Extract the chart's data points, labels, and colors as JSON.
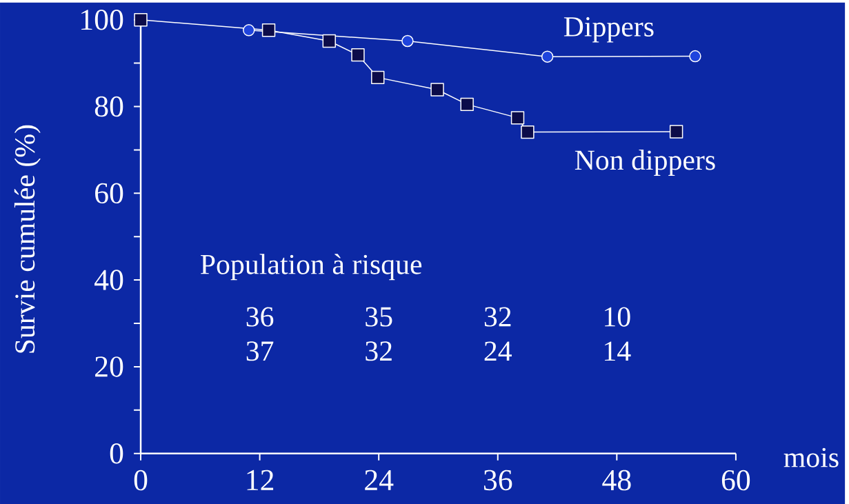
{
  "chart_data": {
    "type": "line",
    "xlabel": "mois",
    "ylabel": "Survie cumulée (%)",
    "xlim": [
      0,
      60
    ],
    "xticks": [
      0,
      12,
      24,
      36,
      48,
      60
    ],
    "ylim": [
      0,
      100
    ],
    "yticks": [
      0,
      {
        "value": 10,
        "label": null
      },
      20,
      {
        "value": 30,
        "label": null
      },
      40,
      {
        "value": 50,
        "label": null
      },
      60,
      {
        "value": 70,
        "label": null
      },
      80,
      {
        "value": 90,
        "label": null
      },
      100
    ],
    "series": [
      {
        "name": "Dippers",
        "color": "#1f44dd",
        "marker": "circle",
        "x": [
          10.9,
          26.9,
          41.0,
          55.9
        ],
        "values": [
          97.6,
          95.1,
          91.5,
          91.6
        ]
      },
      {
        "name": "Non dippers",
        "color": "#0c0c4a",
        "marker": "square",
        "x": [
          0,
          12.9,
          19.0,
          21.9,
          23.9,
          29.9,
          32.9,
          38.0,
          39.0,
          54.0
        ],
        "values": [
          100,
          97.6,
          95.1,
          91.9,
          86.7,
          83.9,
          80.5,
          77.4,
          74.1,
          74.2
        ]
      }
    ],
    "annotations": [
      "Population à risque",
      "36",
      "35",
      "32",
      "10",
      "37",
      "32",
      "24",
      "14"
    ]
  }
}
